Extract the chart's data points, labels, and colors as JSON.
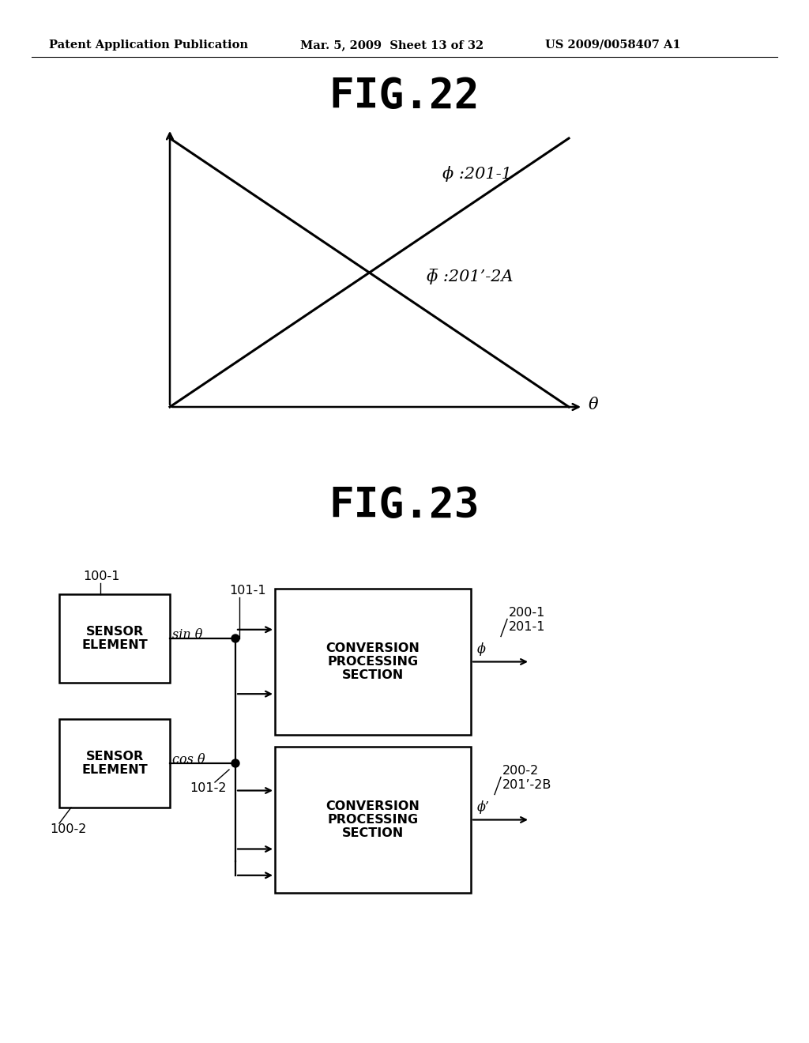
{
  "bg_color": "#ffffff",
  "header_left": "Patent Application Publication",
  "header_mid": "Mar. 5, 2009  Sheet 13 of 32",
  "header_right": "US 2009/0058407 A1",
  "fig22_title": "FIG.22",
  "fig23_title": "FIG.23",
  "fig22_label_phi": "ϕ :201-1",
  "fig22_label_phi_bar": "ϕ̅ :201’-2A",
  "fig22_xlabel": "θ",
  "box1_label": "SENSOR\nELEMENT",
  "box2_label": "SENSOR\nELEMENT",
  "box3_label": "CONVERSION\nPROCESSING\nSECTION",
  "box4_label": "CONVERSION\nPROCESSING\nSECTION",
  "label_100_1": "100-1",
  "label_100_2": "100-2",
  "label_101_1": "101-1",
  "label_101_2": "101-2",
  "label_200_1": "200-1",
  "label_200_2": "200-2",
  "label_201_1": "201-1",
  "label_201_2B": "201’-2B",
  "label_sin": "sin θ",
  "label_cos": "cos θ",
  "label_phi_out": "ϕ",
  "label_phi_prime_out": "ϕ’"
}
